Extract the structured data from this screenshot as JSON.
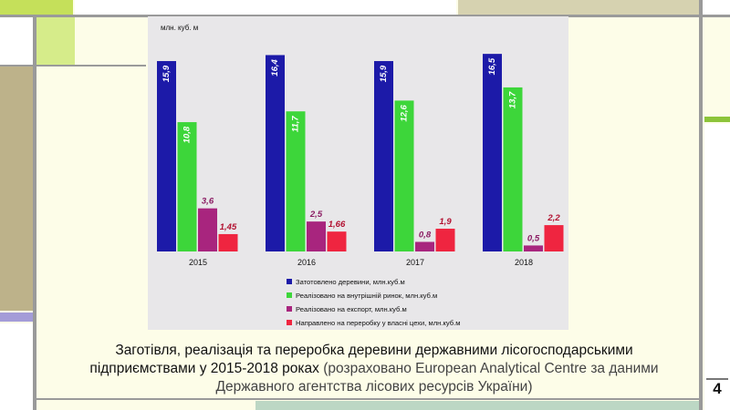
{
  "slide": {
    "page_number": "4",
    "caption_main": "Заготівля, реалізація та переробка деревини державними лісогосподарськими підприємствами у 2015-2018 роках",
    "caption_source": "(розраховано European Analytical Centre за даними Державного агентства лісових ресурсів України)"
  },
  "chart_data": {
    "type": "bar",
    "unit_label": "млн. куб. м",
    "categories": [
      "2015",
      "2016",
      "2017",
      "2018"
    ],
    "series": [
      {
        "name": "Затотовлено деревини, млн.куб.м",
        "color": "#1c1aa8",
        "values": [
          15.9,
          16.4,
          15.9,
          16.5
        ],
        "labels": [
          "15,9",
          "16,4",
          "15,9",
          "16,5"
        ]
      },
      {
        "name": "Реалізовано на внутрішній ринок, млн.куб.м",
        "color": "#3dd63a",
        "values": [
          10.8,
          11.7,
          12.6,
          13.7
        ],
        "labels": [
          "10,8",
          "11,7",
          "12,6",
          "13,7"
        ]
      },
      {
        "name": "Реалізовано на експорт, млн.куб.м",
        "color": "#a8257e",
        "values": [
          3.6,
          2.5,
          0.8,
          0.5
        ],
        "labels": [
          "3,6",
          "2,5",
          "0,8",
          "0,5"
        ]
      },
      {
        "name": "Направлено на переробку у власні цехи, млн.куб.м",
        "color": "#ef2540",
        "values": [
          1.45,
          1.66,
          1.9,
          2.2
        ],
        "labels": [
          "1,45",
          "1,66",
          "1,9",
          "2,2"
        ]
      }
    ],
    "ylim": [
      0,
      17.5
    ],
    "legend_position": "bottom",
    "grid": false
  }
}
